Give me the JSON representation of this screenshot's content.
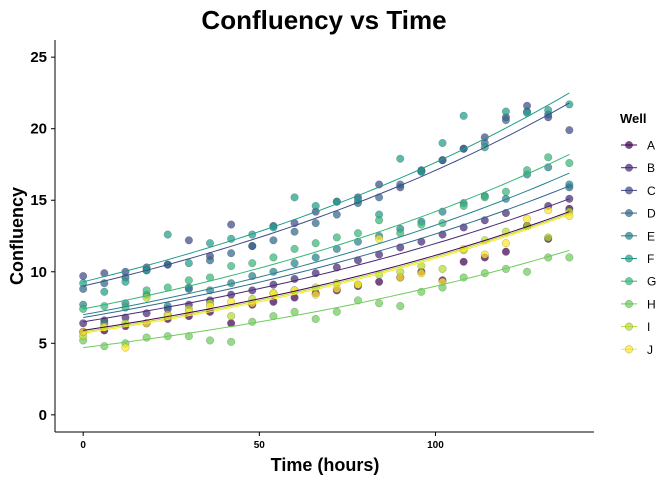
{
  "chart_data": {
    "type": "scatter",
    "title": "Confluency vs Time",
    "xlabel": "Time (hours)",
    "ylabel": "Confluency",
    "xlim": [
      -8,
      145
    ],
    "ylim": [
      -1.2,
      26.2
    ],
    "xticks": [
      0,
      50,
      100
    ],
    "yticks": [
      0,
      5,
      10,
      15,
      20,
      25
    ],
    "x": [
      0,
      6,
      12,
      18,
      24,
      30,
      36,
      42,
      48,
      54,
      60,
      66,
      72,
      78,
      84,
      90,
      96,
      102,
      108,
      114,
      120,
      126,
      132,
      138
    ],
    "legend_title": "Well",
    "legend_position": "right",
    "grid": false,
    "fit": "exponential",
    "series": [
      {
        "name": "A",
        "color": "#440154",
        "values": [
          5.8,
          5.9,
          6.2,
          6.4,
          6.7,
          6.9,
          7.2,
          6.4,
          7.7,
          7.9,
          8.2,
          8.5,
          8.7,
          9.0,
          9.3,
          9.6,
          10.0,
          9.4,
          10.7,
          11.0,
          11.4,
          13.2,
          12.3,
          14.4
        ],
        "fit": [
          5.9,
          14.2
        ]
      },
      {
        "name": "B",
        "color": "#482878",
        "values": [
          6.4,
          6.6,
          6.8,
          7.1,
          7.4,
          7.7,
          8.0,
          8.4,
          8.7,
          9.1,
          9.5,
          9.9,
          10.3,
          10.8,
          11.2,
          11.7,
          12.1,
          12.6,
          13.1,
          13.6,
          14.1,
          13.2,
          14.6,
          15.1
        ],
        "fit": [
          6.5,
          15.1
        ]
      },
      {
        "name": "C",
        "color": "#3E4A89",
        "values": [
          9.7,
          9.9,
          10.0,
          10.3,
          10.5,
          12.2,
          11.1,
          13.3,
          11.8,
          13.2,
          13.4,
          14.2,
          14.9,
          15.2,
          16.1,
          15.9,
          17.1,
          17.8,
          18.6,
          19.4,
          20.8,
          21.6,
          20.8,
          19.9
        ],
        "fit": [
          9.0,
          21.8
        ]
      },
      {
        "name": "D",
        "color": "#31688E",
        "values": [
          8.8,
          9.2,
          9.6,
          10.1,
          10.5,
          8.8,
          10.8,
          11.3,
          11.8,
          12.2,
          12.8,
          13.4,
          14.0,
          14.8,
          15.2,
          16.1,
          17.0,
          17.8,
          18.6,
          19.0,
          20.6,
          21.2,
          21.0,
          15.9
        ],
        "fit": [
          6.8,
          16.0
        ]
      },
      {
        "name": "E",
        "color": "#26828E",
        "values": [
          7.7,
          6.4,
          7.8,
          8.4,
          7.6,
          8.9,
          8.7,
          9.2,
          9.7,
          10.0,
          10.6,
          11.0,
          11.6,
          12.1,
          12.5,
          13.0,
          13.5,
          14.2,
          14.8,
          15.3,
          15.1,
          16.8,
          17.3,
          16.1
        ],
        "fit": [
          7.0,
          16.9
        ]
      },
      {
        "name": "F",
        "color": "#1F9E89",
        "values": [
          9.2,
          8.6,
          9.3,
          10.1,
          12.6,
          10.6,
          12.0,
          12.3,
          12.6,
          13.1,
          15.2,
          14.6,
          14.9,
          15.0,
          14.0,
          17.9,
          17.0,
          19.0,
          20.9,
          18.7,
          21.2,
          21.1,
          21.3,
          21.7
        ],
        "fit": [
          9.3,
          22.5
        ]
      },
      {
        "name": "G",
        "color": "#35B779",
        "values": [
          7.4,
          7.6,
          7.5,
          8.7,
          8.9,
          9.4,
          9.6,
          10.4,
          10.6,
          11.0,
          11.6,
          12.0,
          12.4,
          12.7,
          13.6,
          12.7,
          13.3,
          13.4,
          14.6,
          15.2,
          15.6,
          17.1,
          18.0,
          17.6
        ],
        "fit": [
          7.4,
          18.2
        ]
      },
      {
        "name": "H",
        "color": "#6DCD59",
        "values": [
          5.2,
          4.8,
          5.0,
          5.4,
          5.5,
          5.5,
          5.2,
          5.1,
          6.5,
          6.9,
          7.2,
          6.7,
          7.2,
          8.0,
          7.8,
          7.6,
          8.6,
          8.9,
          9.6,
          9.9,
          10.2,
          10.0,
          11.0,
          11.0
        ],
        "fit": [
          4.7,
          11.5
        ]
      },
      {
        "name": "I",
        "color": "#B4DE2C",
        "values": [
          5.5,
          6.2,
          6.4,
          8.2,
          7.0,
          7.4,
          7.8,
          6.9,
          8.1,
          8.5,
          8.7,
          8.9,
          9.2,
          9.1,
          9.8,
          10.0,
          10.4,
          10.2,
          11.5,
          12.2,
          12.8,
          13.2,
          12.4,
          14.2
        ],
        "fit": [
          5.8,
          14.1
        ]
      },
      {
        "name": "J",
        "color": "#FDE725",
        "values": [
          5.8,
          6.1,
          4.7,
          6.4,
          6.9,
          7.2,
          7.6,
          7.9,
          7.8,
          8.5,
          8.7,
          8.4,
          8.8,
          9.1,
          12.3,
          9.6,
          9.9,
          9.3,
          11.6,
          11.2,
          12.0,
          13.7,
          14.3,
          13.9
        ],
        "fit": [
          5.7,
          14.0
        ]
      }
    ]
  }
}
